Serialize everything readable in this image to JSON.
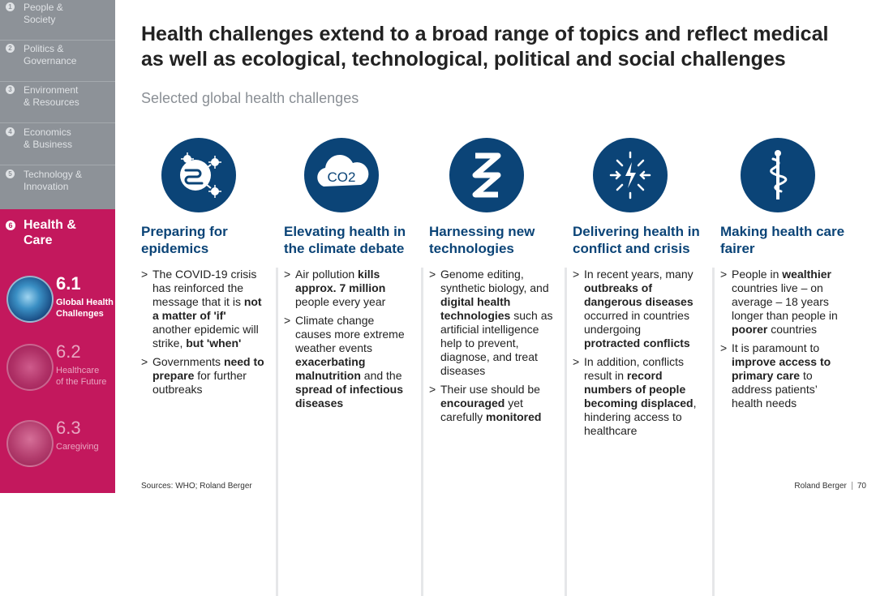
{
  "sidebar": {
    "nav": [
      {
        "num": "1",
        "label": "People &\nSociety"
      },
      {
        "num": "2",
        "label": "Politics &\nGovernance"
      },
      {
        "num": "3",
        "label": "Environment\n& Resources"
      },
      {
        "num": "4",
        "label": "Economics\n& Business"
      },
      {
        "num": "5",
        "label": "Technology &\nInnovation"
      }
    ],
    "active": {
      "num": "6",
      "label": "Health &\nCare"
    },
    "subs": [
      {
        "num": "6.1",
        "title": "Global Health\nChallenges"
      },
      {
        "num": "6.2",
        "title": "Healthcare\nof the Future"
      },
      {
        "num": "6.3",
        "title": "Caregiving"
      }
    ]
  },
  "title": "Health challenges extend to a broad range of topics and reflect medical as well as ecological, technological, political and social challenges",
  "subtitle": "Selected global health challenges",
  "columns": [
    {
      "icon": "pathogen-icon",
      "title": "Preparing for\nepidemics",
      "bullets": [
        [
          {
            "t": "The COVID-19 crisis has reinforced the message that it is "
          },
          {
            "b": "not a matter of 'if'"
          },
          {
            "t": " another epidemic will strike, "
          },
          {
            "b": "but 'when'"
          }
        ],
        [
          {
            "t": "Governments "
          },
          {
            "b": "need to prepare"
          },
          {
            "t": " for further outbreaks"
          }
        ]
      ]
    },
    {
      "icon": "co2-cloud-icon",
      "title": "Elevating health in\nthe climate debate",
      "bullets": [
        [
          {
            "t": "Air pollution "
          },
          {
            "b": "kills approx. 7 million"
          },
          {
            "t": " people every year"
          }
        ],
        [
          {
            "t": "Climate change causes more extreme weather events "
          },
          {
            "b": "exacerbating malnutrition"
          },
          {
            "t": " and the "
          },
          {
            "b": "spread of infectious diseases"
          }
        ]
      ]
    },
    {
      "icon": "dna-icon",
      "title": "Harnessing new\ntechnologies",
      "bullets": [
        [
          {
            "t": "Genome editing, synthetic biology, and "
          },
          {
            "b": "digital health technologies"
          },
          {
            "t": " such as artificial intelligence help to prevent, diagnose, and treat diseases"
          }
        ],
        [
          {
            "t": "Their use should be "
          },
          {
            "b": "encouraged"
          },
          {
            "t": " yet carefully "
          },
          {
            "b": "monitored"
          }
        ]
      ]
    },
    {
      "icon": "conflict-icon",
      "title": "Delivering health in\nconflict and crisis",
      "bullets": [
        [
          {
            "t": "In recent years, many "
          },
          {
            "b": "outbreaks of dangerous diseases"
          },
          {
            "t": " occurred in countries undergoing "
          },
          {
            "b": "protracted conflicts"
          }
        ],
        [
          {
            "t": "In addition, conflicts result in "
          },
          {
            "b": "record numbers of people becoming displaced"
          },
          {
            "t": ", hindering access to healthcare"
          }
        ]
      ]
    },
    {
      "icon": "caduceus-icon",
      "title": "Making health care\nfairer",
      "bullets": [
        [
          {
            "t": "People in "
          },
          {
            "b": "wealthier"
          },
          {
            "t": " countries live – on average – 18 years longer than people in "
          },
          {
            "b": "poorer"
          },
          {
            "t": " countries"
          }
        ],
        [
          {
            "t": "It is paramount to "
          },
          {
            "b": "improve access to primary care"
          },
          {
            "t": " to address patients’ health needs"
          }
        ]
      ]
    }
  ],
  "co2_text": "CO2",
  "sources": "Sources: WHO; Roland Berger",
  "footer": {
    "brand": "Roland Berger",
    "page": "70"
  },
  "colors": {
    "accent": "#c3185d",
    "navy": "#0b4477",
    "sidebar_grey": "#8d9298"
  }
}
